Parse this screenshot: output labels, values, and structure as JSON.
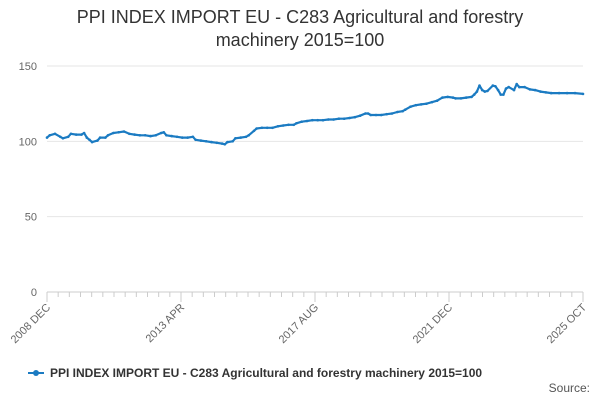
{
  "title_line1": "PPI INDEX IMPORT EU - C283 Agricultural and forestry",
  "title_line2": "machinery 2015=100",
  "source": "Source:",
  "colors": {
    "series": "#1B7BC2",
    "grid": "#e6e6e6",
    "axis": "#cccccc",
    "text": "#666666"
  },
  "chart_data": {
    "type": "line",
    "title": "PPI INDEX IMPORT EU - C283 Agricultural and forestry machinery 2015=100",
    "xlabel": "",
    "ylabel": "",
    "ylim": [
      0,
      150
    ],
    "yticks": [
      0,
      50,
      100,
      150
    ],
    "xlim": [
      "2008-12",
      "2025-10"
    ],
    "xticks": [
      "2008 DEC",
      "2013 APR",
      "2017 AUG",
      "2021 DEC",
      "2025 OCT"
    ],
    "grid": "horizontal",
    "legend_position": "bottom",
    "series": [
      {
        "name": "PPI INDEX IMPORT EU - C283 Agricultural and forestry machinery 2015=100",
        "color": "#1B7BC2",
        "points": [
          [
            "2008-12",
            102.5
          ],
          [
            "2009-01",
            104
          ],
          [
            "2009-03",
            105
          ],
          [
            "2009-05",
            103
          ],
          [
            "2009-06",
            102
          ],
          [
            "2009-08",
            103
          ],
          [
            "2009-09",
            105
          ],
          [
            "2009-11",
            104.5
          ],
          [
            "2010-01",
            104.5
          ],
          [
            "2010-02",
            105.5
          ],
          [
            "2010-03",
            102.5
          ],
          [
            "2010-04",
            101
          ],
          [
            "2010-05",
            99.5
          ],
          [
            "2010-07",
            100.5
          ],
          [
            "2010-08",
            102.5
          ],
          [
            "2010-10",
            102.5
          ],
          [
            "2010-11",
            104
          ],
          [
            "2011-01",
            105.5
          ],
          [
            "2011-03",
            106
          ],
          [
            "2011-05",
            106.5
          ],
          [
            "2011-07",
            105
          ],
          [
            "2011-09",
            104.5
          ],
          [
            "2011-11",
            104
          ],
          [
            "2012-01",
            104
          ],
          [
            "2012-03",
            103.5
          ],
          [
            "2012-05",
            104
          ],
          [
            "2012-07",
            105.5
          ],
          [
            "2012-08",
            106
          ],
          [
            "2012-09",
            104
          ],
          [
            "2012-11",
            103.5
          ],
          [
            "2013-01",
            103
          ],
          [
            "2013-03",
            102.5
          ],
          [
            "2013-05",
            102.5
          ],
          [
            "2013-07",
            103
          ],
          [
            "2013-08",
            101
          ],
          [
            "2013-10",
            100.5
          ],
          [
            "2013-12",
            100
          ],
          [
            "2014-02",
            99.5
          ],
          [
            "2014-04",
            99
          ],
          [
            "2014-06",
            98.5
          ],
          [
            "2014-07",
            98
          ],
          [
            "2014-08",
            99.5
          ],
          [
            "2014-10",
            100
          ],
          [
            "2014-11",
            102
          ],
          [
            "2015-01",
            102.5
          ],
          [
            "2015-03",
            103
          ],
          [
            "2015-04",
            104
          ],
          [
            "2015-06",
            107
          ],
          [
            "2015-07",
            108.5
          ],
          [
            "2015-09",
            109
          ],
          [
            "2015-11",
            109
          ],
          [
            "2016-01",
            109
          ],
          [
            "2016-03",
            110
          ],
          [
            "2016-05",
            110.5
          ],
          [
            "2016-07",
            111
          ],
          [
            "2016-09",
            111
          ],
          [
            "2016-10",
            112
          ],
          [
            "2016-12",
            113
          ],
          [
            "2017-02",
            113.5
          ],
          [
            "2017-04",
            114
          ],
          [
            "2017-06",
            114
          ],
          [
            "2017-08",
            114
          ],
          [
            "2017-10",
            114.5
          ],
          [
            "2017-12",
            114.5
          ],
          [
            "2018-02",
            115
          ],
          [
            "2018-04",
            115
          ],
          [
            "2018-06",
            115.5
          ],
          [
            "2018-08",
            116
          ],
          [
            "2018-10",
            117
          ],
          [
            "2018-12",
            118.5
          ],
          [
            "2019-01",
            118.5
          ],
          [
            "2019-02",
            117.5
          ],
          [
            "2019-04",
            117.5
          ],
          [
            "2019-06",
            117.5
          ],
          [
            "2019-08",
            118
          ],
          [
            "2019-10",
            118.5
          ],
          [
            "2019-12",
            119.5
          ],
          [
            "2020-02",
            120
          ],
          [
            "2020-03",
            121
          ],
          [
            "2020-05",
            123
          ],
          [
            "2020-07",
            124
          ],
          [
            "2020-09",
            124.5
          ],
          [
            "2020-11",
            125
          ],
          [
            "2021-01",
            126
          ],
          [
            "2021-03",
            127
          ],
          [
            "2021-05",
            129
          ],
          [
            "2021-07",
            129.5
          ],
          [
            "2021-09",
            129
          ],
          [
            "2021-10",
            128.5
          ],
          [
            "2021-12",
            128.5
          ],
          [
            "2022-02",
            129
          ],
          [
            "2022-04",
            129.5
          ],
          [
            "2022-05",
            131
          ],
          [
            "2022-06",
            133
          ],
          [
            "2022-07",
            137
          ],
          [
            "2022-08",
            134
          ],
          [
            "2022-09",
            133
          ],
          [
            "2022-10",
            133.5
          ],
          [
            "2022-12",
            137
          ],
          [
            "2023-01",
            136.5
          ],
          [
            "2023-02",
            134
          ],
          [
            "2023-03",
            131
          ],
          [
            "2023-04",
            131
          ],
          [
            "2023-05",
            135
          ],
          [
            "2023-06",
            136
          ],
          [
            "2023-08",
            134
          ],
          [
            "2023-09",
            138
          ],
          [
            "2023-10",
            136
          ],
          [
            "2023-12",
            136
          ],
          [
            "2024-02",
            134.5
          ],
          [
            "2024-04",
            134
          ],
          [
            "2024-06",
            133
          ],
          [
            "2024-08",
            132.5
          ],
          [
            "2024-10",
            132
          ],
          [
            "2025-01",
            132
          ],
          [
            "2025-04",
            132
          ],
          [
            "2025-07",
            132
          ],
          [
            "2025-10",
            131.5
          ]
        ]
      }
    ]
  }
}
